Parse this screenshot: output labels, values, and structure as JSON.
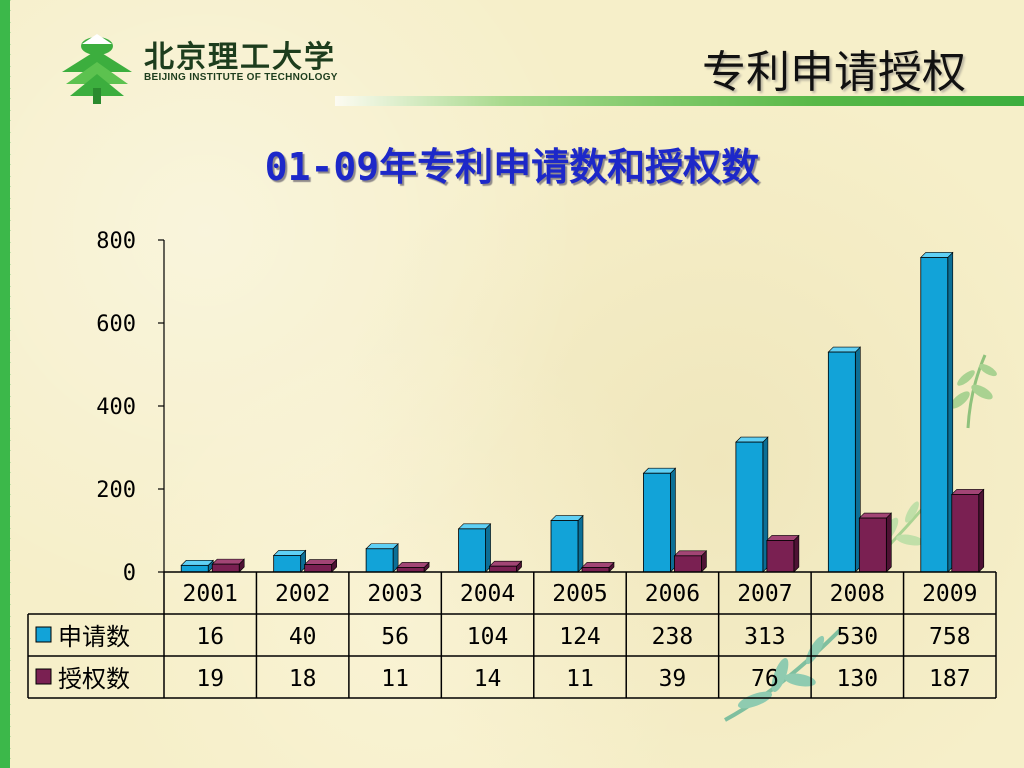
{
  "header": {
    "logo_cn": "北京理工大学",
    "logo_en": "BEIJING INSTITUTE OF TECHNOLOGY",
    "page_title": "专利申请授权"
  },
  "colors": {
    "applications": "#12a3d8",
    "grants": "#7a2052",
    "accent_green": "#3cb84a",
    "title_blue": "#1d28c9"
  },
  "chart_data": {
    "type": "bar",
    "title": "01-09年专利申请数和授权数",
    "categories": [
      "2001",
      "2002",
      "2003",
      "2004",
      "2005",
      "2006",
      "2007",
      "2008",
      "2009"
    ],
    "series": [
      {
        "name": "申请数",
        "values": [
          16,
          40,
          56,
          104,
          124,
          238,
          313,
          530,
          758
        ]
      },
      {
        "name": "授权数",
        "values": [
          19,
          18,
          11,
          14,
          11,
          39,
          76,
          130,
          187
        ]
      }
    ],
    "ylim": [
      0,
      800
    ],
    "yticks": [
      "0",
      "200",
      "400",
      "600",
      "800"
    ],
    "xlabel": "",
    "ylabel": "",
    "grid": false,
    "legend": "data-table"
  }
}
